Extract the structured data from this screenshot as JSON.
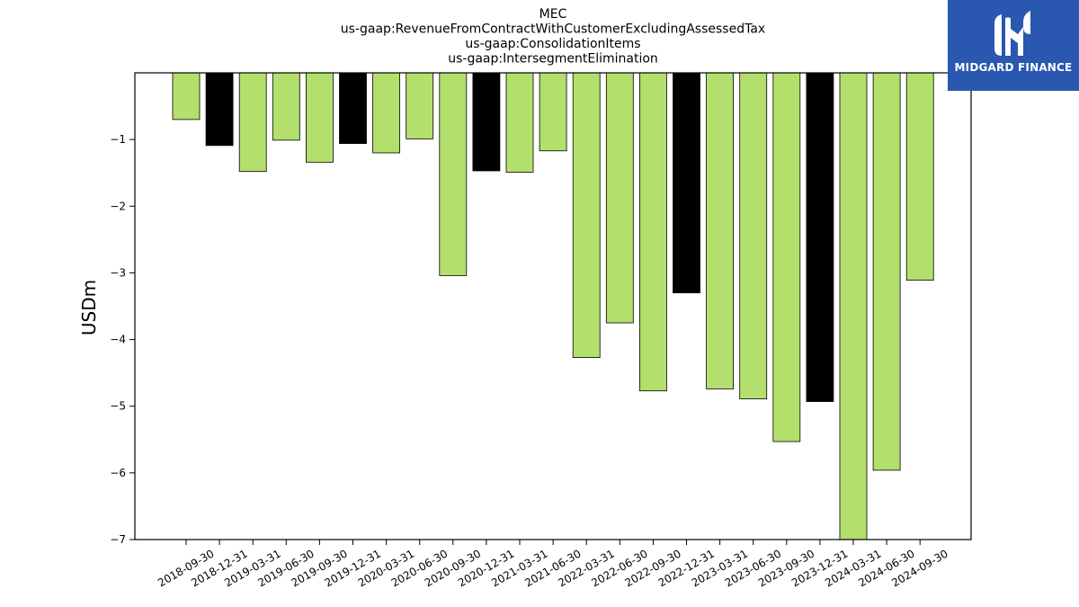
{
  "chart_data": {
    "type": "bar",
    "title_lines": [
      "MEC",
      "us-gaap:RevenueFromContractWithCustomerExcludingAssessedTax",
      "us-gaap:ConsolidationItems",
      "us-gaap:IntersegmentElimination"
    ],
    "xlabel": "",
    "ylabel": "USDm",
    "ylim": [
      -7,
      0
    ],
    "yticks": [
      -1,
      -2,
      -3,
      -4,
      -5,
      -6,
      -7
    ],
    "ytick_labels": [
      "−1",
      "−2",
      "−3",
      "−4",
      "−5",
      "−6",
      "−7"
    ],
    "grid": false,
    "categories": [
      "2018-09-30",
      "2018-12-31",
      "2019-03-31",
      "2019-06-30",
      "2019-09-30",
      "2019-12-31",
      "2020-03-31",
      "2020-06-30",
      "2020-09-30",
      "2020-12-31",
      "2021-03-31",
      "2021-06-30",
      "2022-03-31",
      "2022-06-30",
      "2022-09-30",
      "2022-12-31",
      "2023-03-31",
      "2023-06-30",
      "2023-09-30",
      "2023-12-31",
      "2024-03-31",
      "2024-06-30",
      "2024-09-30"
    ],
    "values": [
      -0.7,
      -1.09,
      -1.48,
      -1.01,
      -1.34,
      -1.06,
      -1.2,
      -0.99,
      -3.04,
      -1.47,
      -1.49,
      -1.17,
      -4.27,
      -3.75,
      -4.77,
      -3.3,
      -4.74,
      -4.89,
      -5.53,
      -4.93,
      -7.0,
      -5.96,
      -3.11
    ],
    "bar_colors": [
      "#b3df6d",
      "#000000",
      "#b3df6d",
      "#b3df6d",
      "#b3df6d",
      "#000000",
      "#b3df6d",
      "#b3df6d",
      "#b3df6d",
      "#000000",
      "#b3df6d",
      "#b3df6d",
      "#b3df6d",
      "#b3df6d",
      "#b3df6d",
      "#000000",
      "#b3df6d",
      "#b3df6d",
      "#b3df6d",
      "#000000",
      "#b3df6d",
      "#b3df6d",
      "#b3df6d"
    ]
  },
  "logo": {
    "text": "MIDGARD FINANCE",
    "background": "#2a57b0",
    "icon": "midgard-logo-icon"
  }
}
